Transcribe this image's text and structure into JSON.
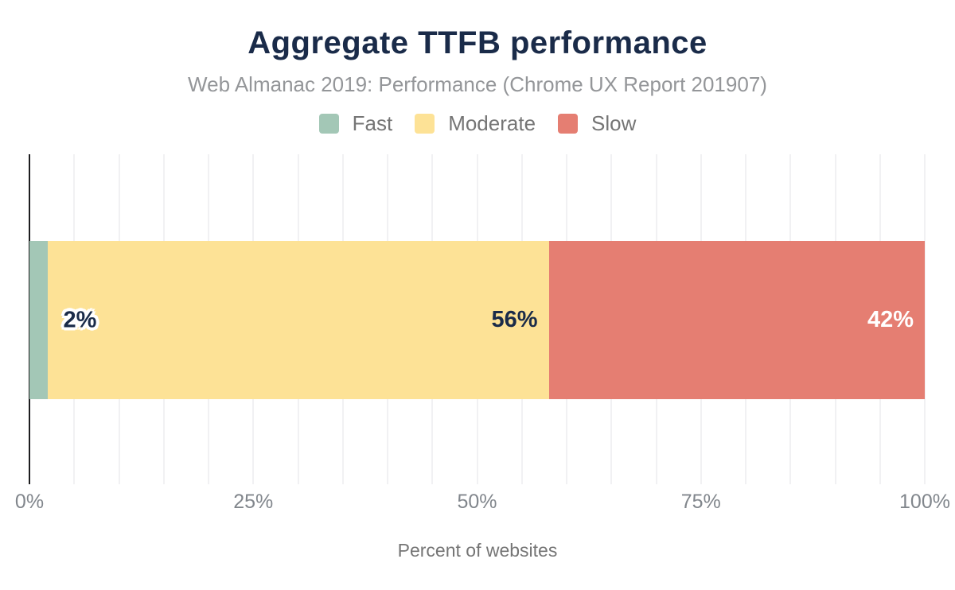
{
  "header": {
    "title": "Aggregate TTFB performance",
    "subtitle": "Web Almanac 2019: Performance (Chrome UX Report 201907)"
  },
  "axis": {
    "label": "Percent of websites",
    "ticks": [
      {
        "label": "0%",
        "value": 0
      },
      {
        "label": "25%",
        "value": 25
      },
      {
        "label": "50%",
        "value": 50
      },
      {
        "label": "75%",
        "value": 75
      },
      {
        "label": "100%",
        "value": 100
      }
    ]
  },
  "chart_data": {
    "type": "bar",
    "orientation": "horizontal-stacked",
    "title": "Aggregate TTFB performance",
    "subtitle": "Web Almanac 2019: Performance (Chrome UX Report 201907)",
    "xlabel": "Percent of websites",
    "ylabel": "",
    "xlim": [
      0,
      100
    ],
    "x_ticks": [
      "0%",
      "25%",
      "50%",
      "75%",
      "100%"
    ],
    "grid": "vertical gridlines every 5%",
    "legend_position": "top",
    "categories": [
      ""
    ],
    "series": [
      {
        "name": "Fast",
        "values": [
          2
        ],
        "color": "#a3c7b6",
        "label": "2%",
        "label_color": "#1a2b49",
        "label_outside": true
      },
      {
        "name": "Moderate",
        "values": [
          56
        ],
        "color": "#fde296",
        "label": "56%",
        "label_color": "#1a2b49",
        "label_outside": false
      },
      {
        "name": "Slow",
        "values": [
          42
        ],
        "color": "#e57e72",
        "label": "42%",
        "label_color": "#ffffff",
        "label_outside": false
      }
    ]
  },
  "colors": {
    "title": "#1a2b49",
    "subtitle": "#949699",
    "tick_text": "#81868c",
    "legend_text": "#757575",
    "axis_line": "#1d1d1f",
    "gridline": "#f1f1f3",
    "background": "#ffffff"
  }
}
